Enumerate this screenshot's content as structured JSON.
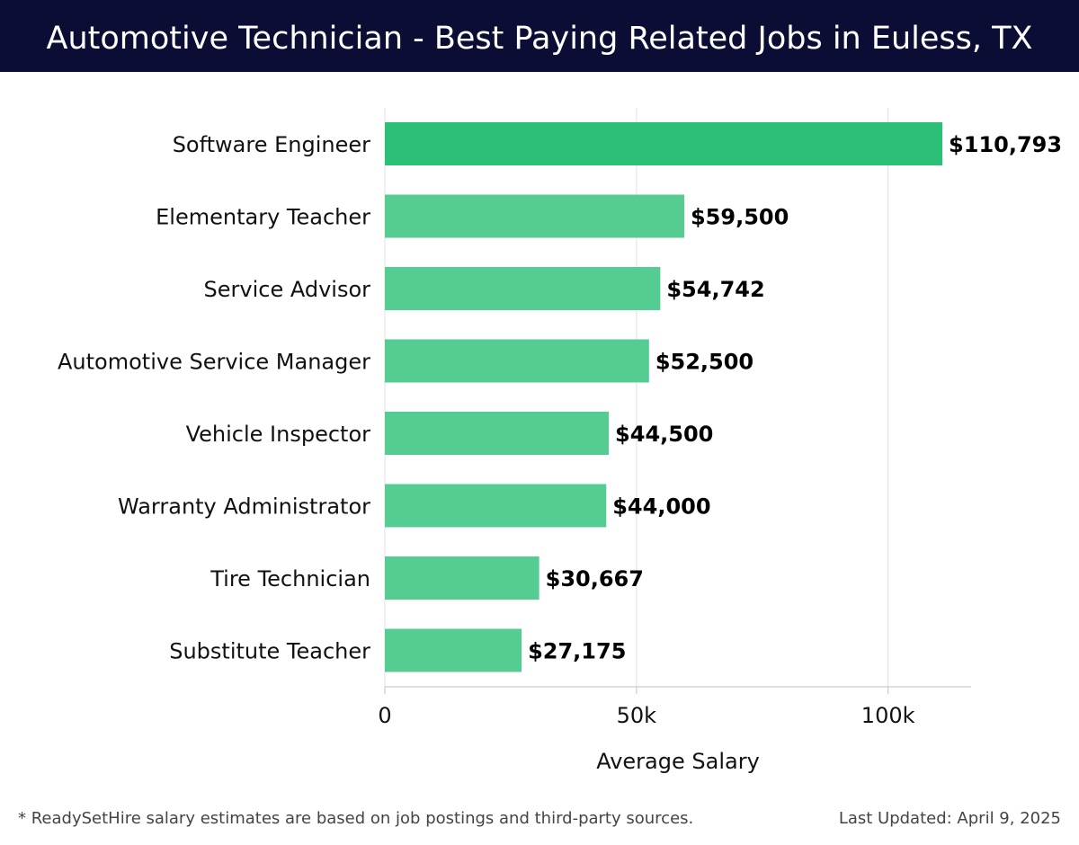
{
  "header": {
    "title": "Automotive Technician - Best Paying Related Jobs in Euless, TX"
  },
  "chart_data": {
    "type": "bar",
    "orientation": "horizontal",
    "categories": [
      "Software Engineer",
      "Elementary Teacher",
      "Service Advisor",
      "Automotive Service Manager",
      "Vehicle Inspector",
      "Warranty Administrator",
      "Tire Technician",
      "Substitute Teacher"
    ],
    "values": [
      110793,
      59500,
      54742,
      52500,
      44500,
      44000,
      30667,
      27175
    ],
    "value_labels": [
      "$110,793",
      "$59,500",
      "$54,742",
      "$52,500",
      "$44,500",
      "$44,000",
      "$30,667",
      "$27,175"
    ],
    "xlabel": "Average Salary",
    "ylabel": "",
    "xlim": [
      0,
      116500
    ],
    "x_ticks": [
      0,
      50000,
      100000
    ],
    "x_tick_labels": [
      "0",
      "50k",
      "100k"
    ],
    "grid": true,
    "colors": {
      "top_bar": "#2bbf78",
      "bars": "#55cc92",
      "grid": "#e5e5e5",
      "axis": "#cccccc"
    }
  },
  "footer": {
    "note": "* ReadySetHire salary estimates are based on job postings and third-party sources.",
    "updated": "Last Updated: April 9, 2025"
  },
  "colors": {
    "header_bg": "#0b0d35",
    "header_text": "#ffffff"
  }
}
